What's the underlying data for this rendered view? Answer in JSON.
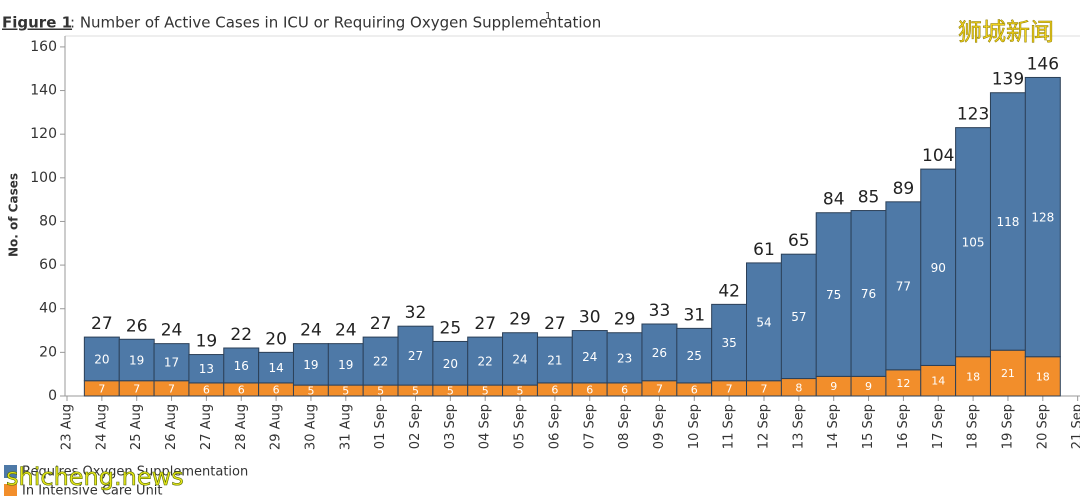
{
  "chart_data": {
    "type": "bar",
    "stacked": true,
    "title_label": "Figure 1",
    "title": ": Number of Active Cases in ICU or Requiring Oxygen Supplementation",
    "title_note": "1",
    "y_label": "No. of Cases",
    "watermarks": [
      "狮城新闻",
      "shicheng.news"
    ],
    "categories": [
      "23 Aug",
      "24 Aug",
      "25 Aug",
      "26 Aug",
      "27 Aug",
      "28 Aug",
      "29 Aug",
      "30 Aug",
      "31 Aug",
      "01 Sep",
      "02 Sep",
      "03 Sep",
      "04 Sep",
      "05 Sep",
      "06 Sep",
      "07 Sep",
      "08 Sep",
      "09 Sep",
      "10 Sep",
      "11 Sep",
      "12 Sep",
      "13 Sep",
      "14 Sep",
      "15 Sep",
      "16 Sep",
      "17 Sep",
      "18 Sep",
      "19 Sep",
      "20 Sep",
      "21 Sep"
    ],
    "series": [
      {
        "name": "In Intensive Care Unit",
        "color": "#f28e2b",
        "values": [
          null,
          7,
          7,
          7,
          6,
          6,
          6,
          5,
          5,
          5,
          5,
          5,
          5,
          5,
          6,
          6,
          6,
          7,
          6,
          7,
          7,
          8,
          9,
          9,
          12,
          14,
          18,
          21,
          18,
          null
        ]
      },
      {
        "name": "Requires Oxygen Supplementation",
        "color": "#4e79a7",
        "values": [
          null,
          20,
          19,
          17,
          13,
          16,
          14,
          19,
          19,
          22,
          27,
          20,
          22,
          24,
          21,
          24,
          23,
          26,
          25,
          35,
          54,
          57,
          75,
          76,
          77,
          90,
          105,
          118,
          128,
          null
        ]
      }
    ],
    "totals": [
      null,
      27,
      26,
      24,
      19,
      22,
      20,
      24,
      24,
      27,
      32,
      25,
      27,
      29,
      27,
      30,
      29,
      33,
      31,
      42,
      61,
      65,
      84,
      85,
      89,
      104,
      123,
      139,
      146,
      null
    ],
    "ylim": [
      0,
      165
    ],
    "yticks": [
      0,
      20,
      40,
      60,
      80,
      100,
      120,
      140,
      160
    ]
  }
}
